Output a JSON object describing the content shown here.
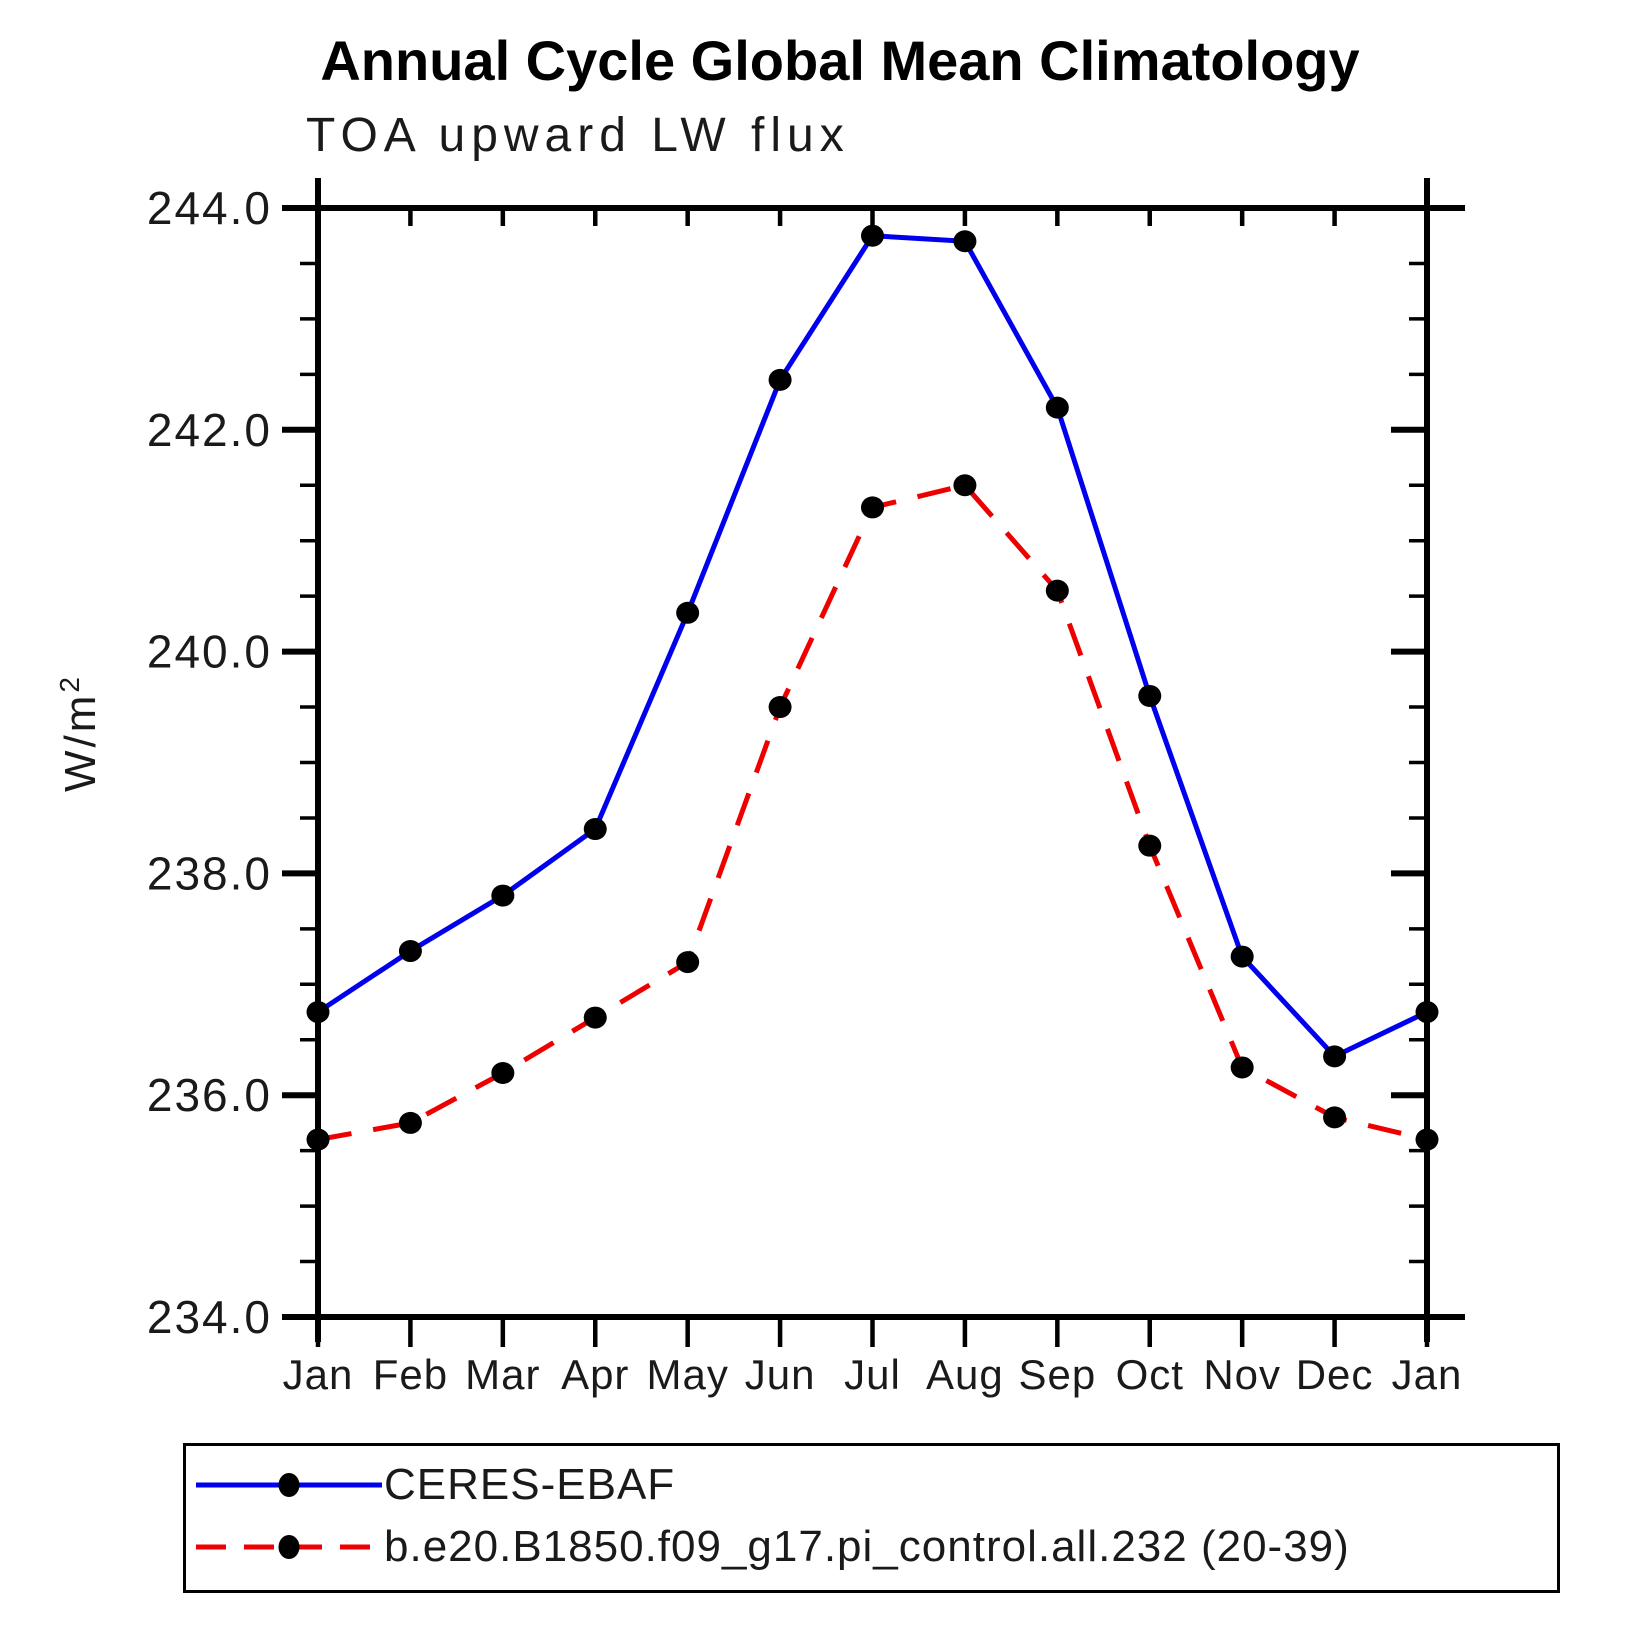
{
  "header": {
    "title": "Annual Cycle Global Mean Climatology",
    "subtitle": "TOA upward LW flux"
  },
  "chart_data": {
    "type": "line",
    "title": "Annual Cycle Global Mean Climatology",
    "subtitle": "TOA upward LW flux",
    "xlabel": "",
    "ylabel": "W/m²",
    "categories": [
      "Jan",
      "Feb",
      "Mar",
      "Apr",
      "May",
      "Jun",
      "Jul",
      "Aug",
      "Sep",
      "Oct",
      "Nov",
      "Dec",
      "Jan"
    ],
    "ylim": [
      234.0,
      244.0
    ],
    "y_major_tick_step": 2.0,
    "y_minor_tick_step": 0.5,
    "y_tick_labels": [
      "234.0",
      "236.0",
      "238.0",
      "240.0",
      "242.0",
      "244.0"
    ],
    "grid": false,
    "legend_position": "bottom",
    "series": [
      {
        "name": "CERES-EBAF",
        "color": "#0000EE",
        "line_style": "solid",
        "marker": "filled-circle",
        "marker_color": "#000000",
        "values": [
          236.75,
          237.3,
          237.8,
          238.4,
          240.35,
          242.45,
          243.75,
          243.7,
          242.2,
          239.6,
          237.25,
          236.35,
          236.75
        ]
      },
      {
        "name": "b.e20.B1850.f09_g17.pi_control.all.232 (20-39)",
        "color": "#EE0000",
        "line_style": "dashed",
        "marker": "filled-circle",
        "marker_color": "#000000",
        "values": [
          235.6,
          235.75,
          236.2,
          236.7,
          237.2,
          239.5,
          241.3,
          241.5,
          240.55,
          238.25,
          236.25,
          235.8,
          235.6
        ]
      }
    ]
  },
  "legend": {
    "entries": [
      {
        "label": "CERES-EBAF",
        "color": "#0000EE",
        "line_style": "solid"
      },
      {
        "label": "b.e20.B1850.f09_g17.pi_control.all.232 (20-39)",
        "color": "#EE0000",
        "line_style": "dashed"
      }
    ]
  }
}
